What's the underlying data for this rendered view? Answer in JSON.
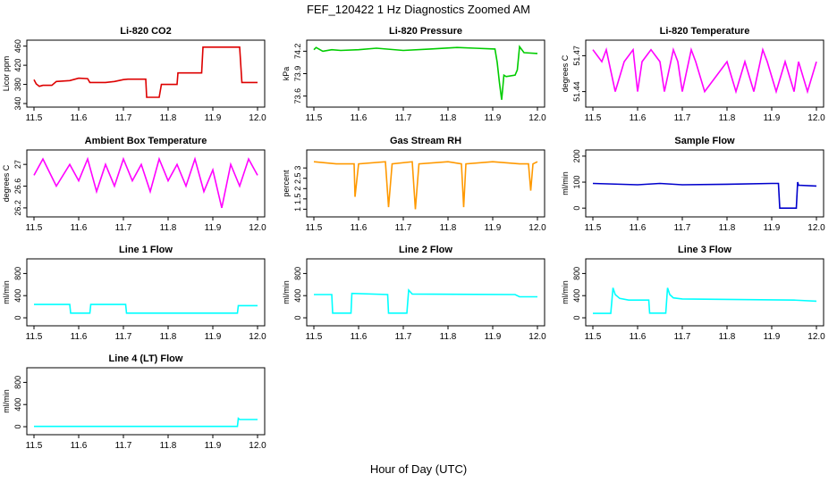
{
  "page": {
    "title": "FEF_120422 1 Hz Diagnostics Zoomed AM",
    "xlabel": "Hour of Day (UTC)"
  },
  "chart_data": [
    {
      "type": "line",
      "title": "Li-820 CO2",
      "ylabel": "Licor ppm",
      "color": "#dd0000",
      "xlim": [
        11.5,
        12.0
      ],
      "ylim": [
        340,
        465
      ],
      "xticks": [
        "11.5",
        "11.6",
        "11.7",
        "11.8",
        "11.9",
        "12.0"
      ],
      "yticks": [
        340,
        380,
        420,
        460
      ],
      "segments": [
        {
          "x": [
            11.5,
            11.505,
            11.512,
            11.52,
            11.54,
            11.55,
            11.58,
            11.6,
            11.62,
            11.625,
            11.66,
            11.68,
            11.7,
            11.71,
            11.75,
            11.752,
            11.78,
            11.785,
            11.82,
            11.822,
            11.875,
            11.878,
            11.96,
            11.965,
            12.0
          ],
          "y": [
            390,
            381,
            376,
            378,
            378,
            386,
            388,
            393,
            392,
            384,
            384,
            386,
            390,
            391,
            391,
            353,
            353,
            380,
            380,
            404,
            404,
            458,
            458,
            384,
            384
          ]
        }
      ]
    },
    {
      "type": "line",
      "title": "Li-820 Pressure",
      "ylabel": "kPa",
      "color": "#00cc00",
      "xlim": [
        11.5,
        12.0
      ],
      "ylim": [
        73.5,
        74.3
      ],
      "xticks": [
        "11.5",
        "11.6",
        "11.7",
        "11.8",
        "11.9",
        "12.0"
      ],
      "yticks": [
        73.6,
        73.9,
        74.2
      ],
      "segments": [
        {
          "x": [
            11.5,
            11.505,
            11.52,
            11.54,
            11.56,
            11.6,
            11.64,
            11.7,
            11.76,
            11.82,
            11.86,
            11.905,
            11.91,
            11.915,
            11.92,
            11.925,
            11.93,
            11.95,
            11.955,
            11.96,
            11.97,
            12.0
          ],
          "y": [
            74.22,
            74.25,
            74.2,
            74.22,
            74.21,
            74.22,
            74.24,
            74.21,
            74.23,
            74.25,
            74.24,
            74.23,
            74.05,
            73.78,
            73.55,
            73.88,
            73.86,
            73.88,
            73.95,
            74.26,
            74.18,
            74.17
          ]
        }
      ]
    },
    {
      "type": "line",
      "title": "Li-820 Temperature",
      "ylabel": "degrees C",
      "color": "#ff00ff",
      "xlim": [
        11.5,
        12.0
      ],
      "ylim": [
        51.43,
        51.48
      ],
      "xticks": [
        "11.5",
        "11.6",
        "11.7",
        "11.8",
        "11.9",
        "12.0"
      ],
      "yticks": [
        51.44,
        51.47
      ],
      "segments": [
        {
          "x": [
            11.5,
            11.52,
            11.53,
            11.55,
            11.57,
            11.59,
            11.6,
            11.61,
            11.63,
            11.65,
            11.66,
            11.68,
            11.69,
            11.7,
            11.72,
            11.73,
            11.75,
            11.8,
            11.82,
            11.84,
            11.86,
            11.88,
            11.89,
            11.91,
            11.93,
            11.95,
            11.96,
            11.98,
            12.0
          ],
          "y": [
            51.475,
            51.465,
            51.475,
            51.44,
            51.465,
            51.475,
            51.44,
            51.465,
            51.475,
            51.465,
            51.44,
            51.475,
            51.465,
            51.44,
            51.475,
            51.465,
            51.44,
            51.465,
            51.44,
            51.465,
            51.44,
            51.475,
            51.465,
            51.44,
            51.465,
            51.44,
            51.465,
            51.44,
            51.465
          ]
        }
      ]
    },
    {
      "type": "line",
      "title": "Ambient Box Temperature",
      "ylabel": "degrees C",
      "color": "#ff00ff",
      "xlim": [
        11.5,
        12.0
      ],
      "ylim": [
        26.1,
        27.2
      ],
      "xticks": [
        "11.5",
        "11.6",
        "11.7",
        "11.8",
        "11.9",
        "12.0"
      ],
      "yticks": [
        26.2,
        26.6,
        27.0
      ],
      "segments": [
        {
          "x": [
            11.5,
            11.52,
            11.55,
            11.58,
            11.6,
            11.62,
            11.64,
            11.66,
            11.68,
            11.7,
            11.72,
            11.74,
            11.76,
            11.78,
            11.8,
            11.82,
            11.84,
            11.86,
            11.88,
            11.9,
            11.92,
            11.94,
            11.96,
            11.98,
            12.0
          ],
          "y": [
            26.8,
            27.1,
            26.6,
            27.0,
            26.7,
            27.1,
            26.5,
            27.0,
            26.6,
            27.1,
            26.7,
            27.0,
            26.5,
            27.1,
            26.7,
            27.0,
            26.6,
            27.1,
            26.5,
            26.9,
            26.2,
            27.0,
            26.6,
            27.1,
            26.8
          ]
        }
      ]
    },
    {
      "type": "line",
      "title": "Gas Stream RH",
      "ylabel": "percent",
      "color": "#ff9900",
      "xlim": [
        11.5,
        12.0
      ],
      "ylim": [
        0.8,
        3.7
      ],
      "xticks": [
        "11.5",
        "11.6",
        "11.7",
        "11.8",
        "11.9",
        "12.0"
      ],
      "yticks": [
        1.0,
        1.5,
        2.0,
        2.5,
        3.0
      ],
      "segments": [
        {
          "x": [
            11.5,
            11.55,
            11.59,
            11.592,
            11.6,
            11.66,
            11.667,
            11.675,
            11.72,
            11.727,
            11.735,
            11.8,
            11.83,
            11.835,
            11.84,
            11.9,
            11.96,
            11.98,
            11.985,
            11.99,
            12.0
          ],
          "y": [
            3.3,
            3.2,
            3.2,
            1.6,
            3.2,
            3.3,
            1.1,
            3.2,
            3.3,
            1.0,
            3.2,
            3.3,
            3.2,
            1.1,
            3.2,
            3.3,
            3.2,
            3.2,
            1.9,
            3.2,
            3.3
          ]
        }
      ]
    },
    {
      "type": "line",
      "title": "Sample Flow",
      "ylabel": "ml/min",
      "color": "#0000cc",
      "xlim": [
        11.5,
        12.0
      ],
      "ylim": [
        -20,
        210
      ],
      "xticks": [
        "11.5",
        "11.6",
        "11.7",
        "11.8",
        "11.9",
        "12.0"
      ],
      "yticks": [
        0,
        100,
        200
      ],
      "segments": [
        {
          "x": [
            11.5,
            11.6,
            11.65,
            11.7,
            11.8,
            11.9,
            11.915,
            11.918,
            11.955,
            11.958,
            11.96,
            12.0
          ],
          "y": [
            95,
            90,
            95,
            90,
            92,
            95,
            95,
            0,
            0,
            100,
            88,
            85
          ]
        }
      ]
    },
    {
      "type": "line",
      "title": "Line 1 Flow",
      "ylabel": "ml/min",
      "color": "#00ffff",
      "xlim": [
        11.5,
        12.0
      ],
      "ylim": [
        -80,
        1000
      ],
      "xticks": [
        "11.5",
        "11.6",
        "11.7",
        "11.8",
        "11.9",
        "12.0"
      ],
      "yticks": [
        0,
        400,
        800
      ],
      "segments": [
        {
          "x": [
            11.5,
            11.58,
            11.582,
            11.625,
            11.627,
            11.705,
            11.707,
            11.955,
            11.957,
            12.0
          ],
          "y": [
            240,
            240,
            85,
            85,
            240,
            240,
            85,
            85,
            220,
            220
          ]
        }
      ]
    },
    {
      "type": "line",
      "title": "Line 2 Flow",
      "ylabel": "ml/min",
      "color": "#00ffff",
      "xlim": [
        11.5,
        12.0
      ],
      "ylim": [
        -80,
        1000
      ],
      "xticks": [
        "11.5",
        "11.6",
        "11.7",
        "11.8",
        "11.9",
        "12.0"
      ],
      "yticks": [
        0,
        400,
        800
      ],
      "segments": [
        {
          "x": [
            11.5,
            11.54,
            11.542,
            11.583,
            11.585,
            11.665,
            11.667,
            11.708,
            11.712,
            11.72,
            11.95,
            11.96,
            12.0
          ],
          "y": [
            420,
            420,
            85,
            85,
            440,
            420,
            85,
            85,
            500,
            430,
            420,
            380,
            380
          ]
        }
      ]
    },
    {
      "type": "line",
      "title": "Line 3 Flow",
      "ylabel": "ml/min",
      "color": "#00ffff",
      "xlim": [
        11.5,
        12.0
      ],
      "ylim": [
        -80,
        1000
      ],
      "xticks": [
        "11.5",
        "11.6",
        "11.7",
        "11.8",
        "11.9",
        "12.0"
      ],
      "yticks": [
        0,
        400,
        800
      ],
      "segments": [
        {
          "x": [
            11.5,
            11.54,
            11.545,
            11.55,
            11.56,
            11.58,
            11.625,
            11.627,
            11.663,
            11.667,
            11.672,
            11.68,
            11.7,
            11.95,
            12.0
          ],
          "y": [
            80,
            80,
            540,
            420,
            350,
            320,
            320,
            85,
            85,
            540,
            420,
            360,
            340,
            320,
            300
          ]
        }
      ]
    },
    {
      "type": "line",
      "title": "Line 4 (LT) Flow",
      "ylabel": "ml/min",
      "color": "#00ffff",
      "xlim": [
        11.5,
        12.0
      ],
      "ylim": [
        -80,
        1000
      ],
      "xticks": [
        "11.5",
        "11.6",
        "11.7",
        "11.8",
        "11.9",
        "12.0"
      ],
      "yticks": [
        0,
        400,
        800
      ],
      "segments": [
        {
          "x": [
            11.5,
            11.955,
            11.957,
            11.96,
            12.0
          ],
          "y": [
            5,
            5,
            150,
            130,
            130
          ]
        }
      ]
    }
  ]
}
